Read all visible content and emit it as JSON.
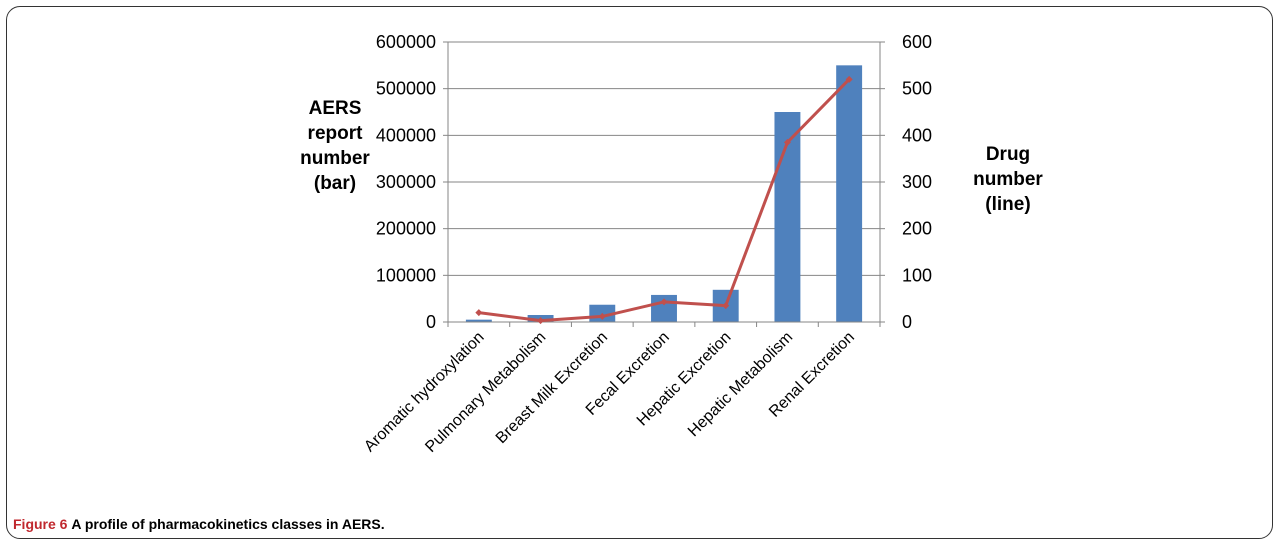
{
  "chart_data": {
    "type": "bar",
    "categories": [
      "Aromatic hydroxylation",
      "Pulmonary Metabolism",
      "Breast Milk Excretion",
      "Fecal Excretion",
      "Hepatic Excretion",
      "Hepatic Metabolism",
      "Renal Excretion"
    ],
    "series": [
      {
        "type": "bar",
        "axis": "left",
        "values": [
          5000,
          15000,
          37000,
          58000,
          69000,
          450000,
          550000
        ]
      },
      {
        "type": "line",
        "axis": "right",
        "values": [
          20,
          3,
          12,
          43,
          35,
          385,
          520
        ]
      }
    ],
    "ylabel_left": [
      "AERS",
      "report",
      "number",
      "(bar)"
    ],
    "ylabel_right": [
      "Drug",
      "number",
      "(line)"
    ],
    "ylim_left": [
      0,
      600000
    ],
    "ylim_right": [
      0,
      600
    ],
    "yticks_left": [
      0,
      100000,
      200000,
      300000,
      400000,
      500000,
      600000
    ],
    "yticks_right": [
      0,
      100,
      200,
      300,
      400,
      500,
      600
    ],
    "grid": true,
    "colors": {
      "bar": "#4f81bd",
      "line": "#c0504d",
      "grid": "#868686",
      "axis": "#868686"
    }
  },
  "caption": {
    "label": "Figure 6",
    "text": "A profile of pharmacokinetics classes in AERS."
  }
}
